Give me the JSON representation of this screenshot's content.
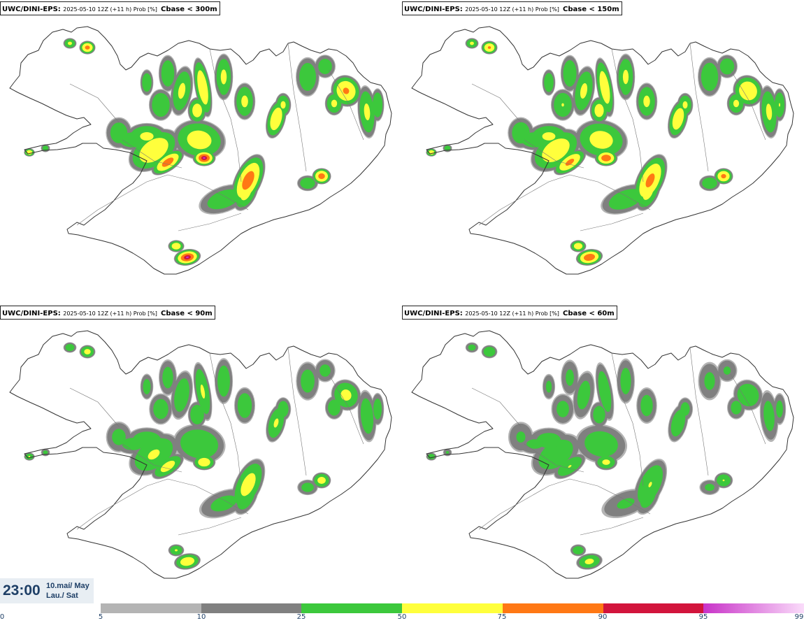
{
  "panels": [
    {
      "model": "UWC/DINI-EPS",
      "run": "2025-05-10 12Z (+11 h) Prob [%]",
      "criterion": "Cbase < 300m",
      "coverage": 1.0
    },
    {
      "model": "UWC/DINI-EPS",
      "run": "2025-05-10 12Z (+11 h) Prob [%]",
      "criterion": "Cbase < 150m",
      "coverage": 0.85
    },
    {
      "model": "UWC/DINI-EPS",
      "run": "2025-05-10 12Z (+11 h) Prob [%]",
      "criterion": "Cbase < 90m",
      "coverage": 0.62
    },
    {
      "model": "UWC/DINI-EPS",
      "run": "2025-05-10 12Z (+11 h) Prob [%]",
      "criterion": "Cbase < 60m",
      "coverage": 0.5
    }
  ],
  "valid_time": {
    "time": "23:00",
    "date_line1": "10.maí/ May",
    "date_line2": "Lau./ Sat"
  },
  "legend": {
    "ticks": [
      {
        "label": "0",
        "value": 0
      },
      {
        "label": "5",
        "value": 5
      },
      {
        "label": "10",
        "value": 10
      },
      {
        "label": "25",
        "value": 25
      },
      {
        "label": "50",
        "value": 50
      },
      {
        "label": "75",
        "value": 75
      },
      {
        "label": "90",
        "value": 90
      },
      {
        "label": "95",
        "value": 95
      },
      {
        "label": "99",
        "value": 99
      }
    ],
    "bins": [
      {
        "from": 5,
        "to": 10,
        "color": "#b4b4b4"
      },
      {
        "from": 10,
        "to": 25,
        "color": "#808080"
      },
      {
        "from": 25,
        "to": 50,
        "color": "#3cc83c"
      },
      {
        "from": 50,
        "to": 75,
        "color": "#ffff3c"
      },
      {
        "from": 75,
        "to": 90,
        "color": "#ff7814"
      },
      {
        "from": 90,
        "to": 95,
        "color": "#d2143c"
      },
      {
        "from": 95,
        "to": "99",
        "color": "#c832c8",
        "color_end": "#fadcfa"
      }
    ]
  }
}
